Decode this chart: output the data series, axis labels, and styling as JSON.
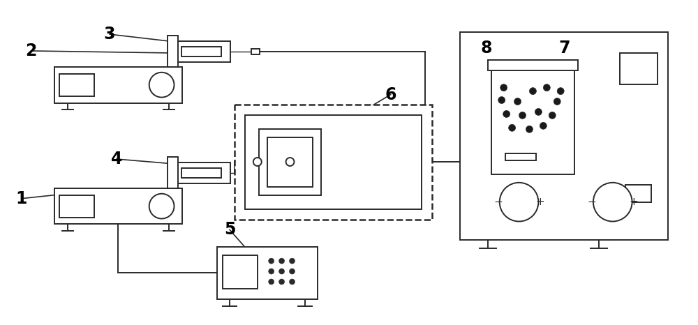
{
  "bg_color": "#ffffff",
  "line_color": "#2a2a2a",
  "label_color": "#000000",
  "label_fontsize": 17,
  "label_fontweight": "bold",
  "figsize": [
    10.0,
    4.66
  ],
  "dpi": 100
}
